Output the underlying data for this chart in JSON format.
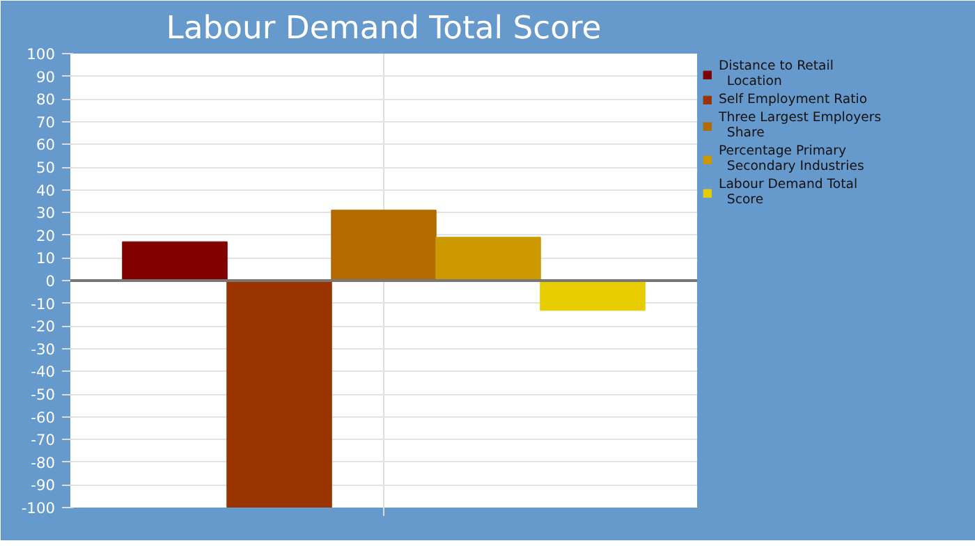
{
  "chart_data": {
    "type": "bar",
    "title": "Labour Demand Total Score",
    "categories": [
      null
    ],
    "series": [
      {
        "name": "Distance to Retail Location",
        "color": "#800000",
        "values": [
          17
        ]
      },
      {
        "name": "Self Employment Ratio",
        "color": "#993300",
        "values": [
          -100
        ]
      },
      {
        "name": "Three Largest Employers Share",
        "color": "#b36b00",
        "values": [
          31
        ]
      },
      {
        "name": "Percentage Primary Secondary Industries",
        "color": "#cc9900",
        "values": [
          19
        ]
      },
      {
        "name": "Labour Demand Total Score",
        "color": "#e6cc00",
        "values": [
          -13
        ]
      }
    ],
    "ylim": [
      -100,
      100
    ],
    "yticks": [
      100,
      90,
      80,
      70,
      60,
      50,
      40,
      30,
      20,
      10,
      0,
      -10,
      -20,
      -30,
      -40,
      -50,
      -60,
      -70,
      -80,
      -90,
      -100
    ],
    "grid": true,
    "legend": "right"
  }
}
